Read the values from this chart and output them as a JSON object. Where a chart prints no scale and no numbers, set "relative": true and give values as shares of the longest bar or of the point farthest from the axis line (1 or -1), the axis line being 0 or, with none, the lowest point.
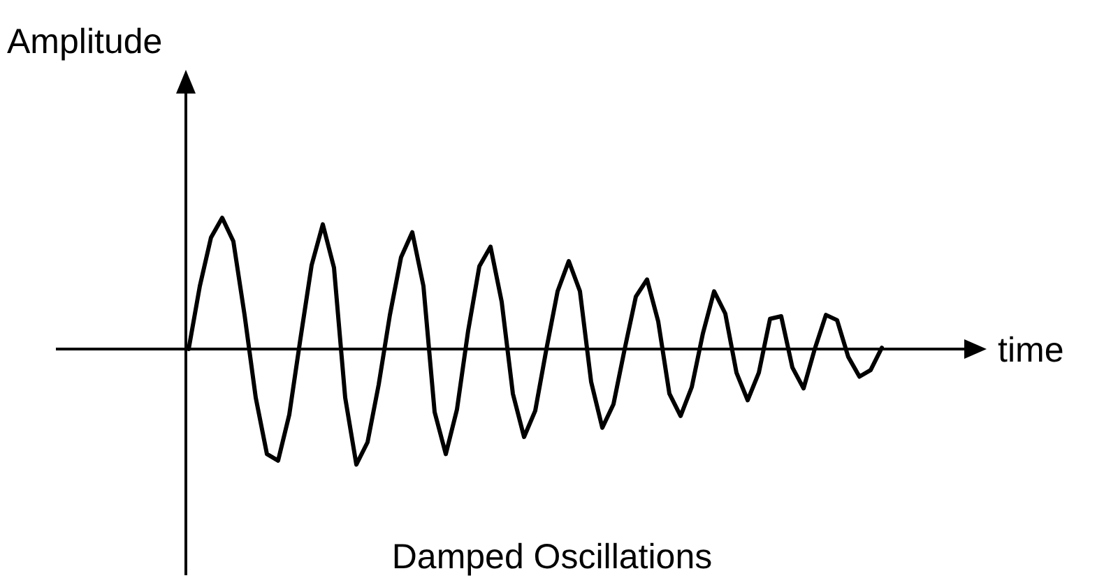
{
  "chart_data": {
    "type": "line",
    "relative": true,
    "ylabel": "Amplitude",
    "xlabel": "time",
    "annotations": [
      "Damped Oscillations"
    ],
    "categories": [
      null,
      null,
      null,
      null,
      null,
      null,
      null,
      null,
      null,
      null,
      null,
      null,
      null,
      null,
      null,
      null,
      null,
      null,
      null,
      null,
      null,
      null,
      null,
      null,
      null,
      null,
      null,
      null,
      null,
      null,
      null,
      null,
      null,
      null,
      null,
      null,
      null,
      null,
      null,
      null,
      null,
      null,
      null,
      null,
      null,
      null,
      null,
      null,
      null,
      null,
      null,
      null,
      null,
      null,
      null,
      null,
      null,
      null,
      null,
      null,
      null,
      null,
      null
    ],
    "series": [
      {
        "color": "#000000",
        "values": [
          0,
          0.48,
          0.85,
          1,
          0.82,
          0.26,
          -0.37,
          -0.8,
          -0.85,
          -0.5,
          0.08,
          0.64,
          0.95,
          0.62,
          -0.37,
          -0.88,
          -0.71,
          -0.27,
          0.26,
          0.7,
          0.89,
          0.48,
          -0.48,
          -0.8,
          -0.46,
          0.14,
          0.63,
          0.78,
          0.36,
          -0.34,
          -0.67,
          -0.47,
          0,
          0.44,
          0.67,
          0.44,
          -0.25,
          -0.6,
          -0.42,
          0,
          0.4,
          0.53,
          0.21,
          -0.34,
          -0.51,
          -0.29,
          0.12,
          0.44,
          0.27,
          -0.18,
          -0.39,
          -0.18,
          0.23,
          0.25,
          -0.14,
          -0.3,
          0,
          0.26,
          0.22,
          -0.06,
          -0.21,
          -0.16,
          0.01
        ]
      }
    ]
  }
}
